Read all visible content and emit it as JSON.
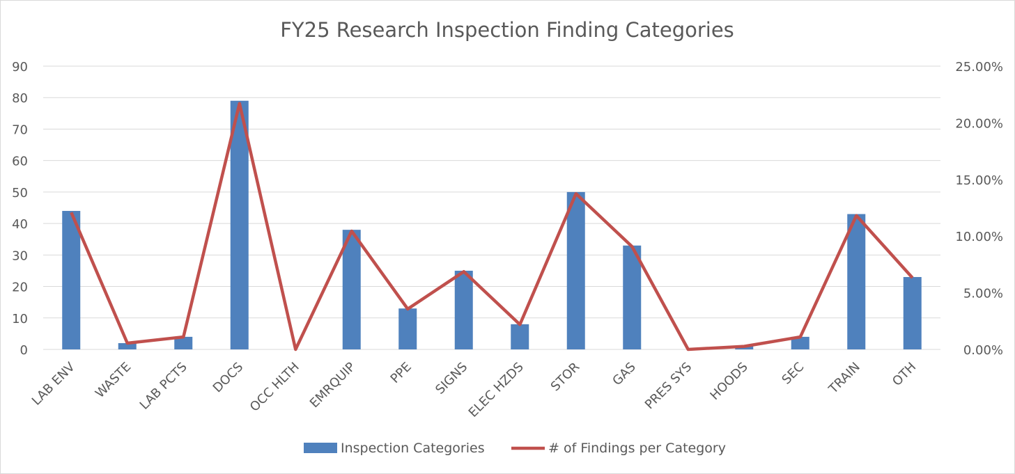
{
  "chart_data": {
    "type": "bar",
    "title": "FY25 Research Inspection Finding Categories",
    "categories": [
      "LAB ENV",
      "WASTE",
      "LAB PCTS",
      "DOCS",
      "OCC HLTH",
      "EMRQUIP",
      "PPE",
      "SIGNS",
      "ELEC HZDS",
      "STOR",
      "GAS",
      "PRES SYS",
      "HOODS",
      "SEC",
      "TRAIN",
      "OTH"
    ],
    "series": [
      {
        "name": "Inspection Categories",
        "type": "bar",
        "axis": "left",
        "color": "#4f81bd",
        "values": [
          44,
          2,
          4,
          79,
          0,
          38,
          13,
          25,
          8,
          50,
          33,
          0,
          1,
          4,
          43,
          23
        ]
      },
      {
        "name": "# of Findings per Category",
        "type": "line",
        "axis": "right",
        "color": "#c0504d",
        "values": [
          0.1209,
          0.0055,
          0.011,
          0.217,
          0,
          0.1044,
          0.0357,
          0.0687,
          0.022,
          0.1374,
          0.0907,
          0,
          0.0027,
          0.011,
          0.1181,
          0.0632
        ]
      }
    ],
    "y_left": {
      "range": [
        0,
        90
      ],
      "ticks": [
        "0",
        "10",
        "20",
        "30",
        "40",
        "50",
        "60",
        "70",
        "80",
        "90"
      ]
    },
    "y_right": {
      "range": [
        0,
        0.25
      ],
      "ticks": [
        "0.00%",
        "5.00%",
        "10.00%",
        "15.00%",
        "20.00%",
        "25.00%"
      ]
    },
    "grid": true,
    "legend": "bottom"
  }
}
